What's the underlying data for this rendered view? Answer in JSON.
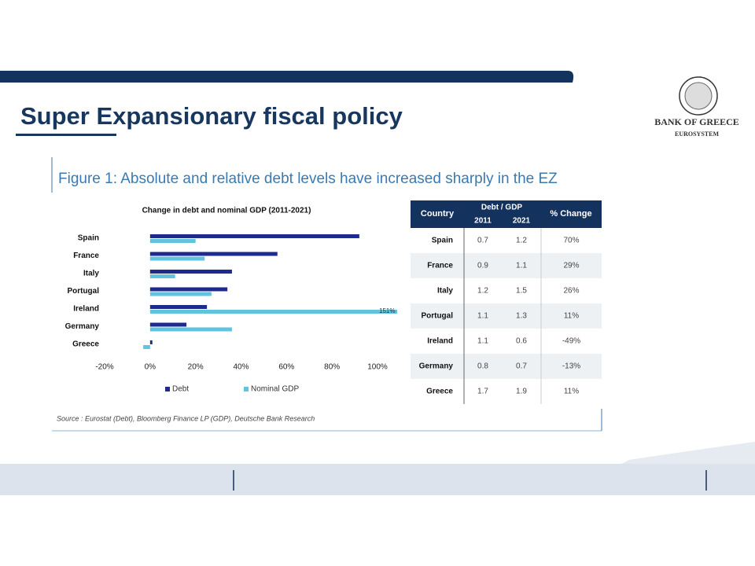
{
  "slide_title": "Super Expansionary fiscal policy",
  "logo": {
    "name": "BANK OF GREECE",
    "subtitle": "EUROSYSTEM"
  },
  "figure_title": "Figure 1: Absolute and relative debt levels have increased sharply in the EZ",
  "chart_data": {
    "type": "hbar",
    "title": "Change in debt and nominal GDP (2011-2021)",
    "categories": [
      "Spain",
      "France",
      "Italy",
      "Portugal",
      "Ireland",
      "Germany",
      "Greece"
    ],
    "series": [
      {
        "name": "Debt",
        "color": "#1f2b8c",
        "values": [
          92,
          56,
          36,
          34,
          25,
          16,
          1
        ]
      },
      {
        "name": "Nominal GDP",
        "color": "#62c3df",
        "values": [
          20,
          24,
          11,
          27,
          151,
          36,
          -3
        ],
        "value_labels": [
          null,
          null,
          null,
          null,
          "151%",
          null,
          null
        ]
      }
    ],
    "xlim": [
      -20,
      100
    ],
    "xticks": [
      {
        "value": -20,
        "label": "-20%"
      },
      {
        "value": 0,
        "label": "0%"
      },
      {
        "value": 20,
        "label": "20%"
      },
      {
        "value": 40,
        "label": "40%"
      },
      {
        "value": 60,
        "label": "60%"
      },
      {
        "value": 80,
        "label": "80%"
      },
      {
        "value": 100,
        "label": "100%"
      }
    ],
    "legend": "bottom"
  },
  "table": {
    "header": [
      "Country",
      "Debt / GDP",
      "% Change"
    ],
    "subheader": [
      "2011",
      "2021"
    ],
    "rows": [
      [
        "Spain",
        "0.7",
        "1.2",
        "70%"
      ],
      [
        "France",
        "0.9",
        "1.1",
        "29%"
      ],
      [
        "Italy",
        "1.2",
        "1.5",
        "26%"
      ],
      [
        "Portugal",
        "1.1",
        "1.3",
        "11%"
      ],
      [
        "Ireland",
        "1.1",
        "0.6",
        "-49%"
      ],
      [
        "Germany",
        "0.8",
        "0.7",
        "-13%"
      ],
      [
        "Greece",
        "1.7",
        "1.9",
        "11%"
      ]
    ]
  },
  "source": "Source : Eurostat (Debt), Bloomberg Finance LP (GDP), Deutsche Bank Research"
}
